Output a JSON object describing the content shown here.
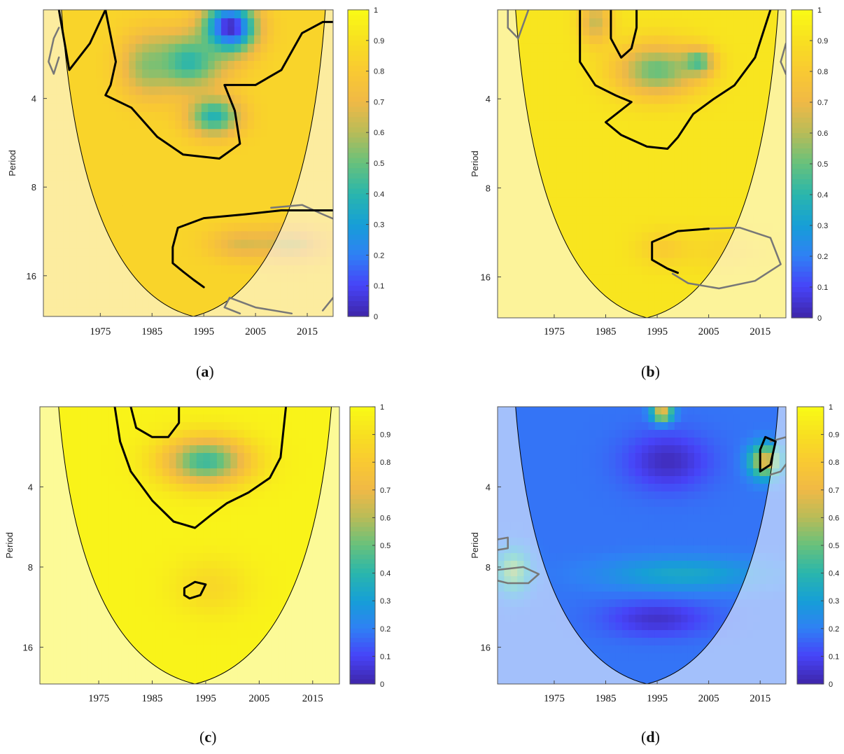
{
  "figure": {
    "colormap": [
      "#3e26a8",
      "#4743f8",
      "#2f80f5",
      "#169fd6",
      "#2ab6ac",
      "#67c17c",
      "#b8bc58",
      "#f0b946",
      "#f9c932",
      "#f8e021",
      "#f9fb15"
    ],
    "coi_color": "#000000",
    "sig_contour_color": "#000000",
    "outside_contour_color": "#777777"
  },
  "chart_data": [
    {
      "panel_label": "a",
      "type": "heatmap",
      "title": "",
      "xlabel": "",
      "ylabel": "Period",
      "x_ticks": [
        1975,
        1985,
        1995,
        2005,
        2015
      ],
      "y_ticks": [
        4,
        8,
        16
      ],
      "xlim": [
        1964,
        2020
      ],
      "ylim": [
        2,
        22
      ],
      "colorbar": {
        "ticks": [
          0,
          0.1,
          0.2,
          0.3,
          0.4,
          0.5,
          0.6,
          0.7,
          0.8,
          0.9,
          1
        ],
        "labels": [
          "0",
          "0.1",
          "0.2",
          "0.3",
          "0.4",
          "0.5",
          "0.6",
          "0.7",
          "0.8",
          "0.9",
          "1"
        ]
      },
      "coi": {
        "apex_x": 1993,
        "left_top_x": 1967.5,
        "right_top_x": 2018.5
      },
      "background_value": 0.85,
      "blobs": [
        {
          "x": 2000,
          "y": 2.3,
          "sx": 5,
          "sy": 0.28,
          "v": 0.0,
          "w": 1.0
        },
        {
          "x": 1992,
          "y": 3.0,
          "sx": 7,
          "sy": 0.32,
          "v": 0.35,
          "w": 0.9
        },
        {
          "x": 1984,
          "y": 3.1,
          "sx": 5,
          "sy": 0.35,
          "v": 0.45,
          "w": 0.7
        },
        {
          "x": 1997,
          "y": 4.6,
          "sx": 5,
          "sy": 0.22,
          "v": 0.3,
          "w": 0.85
        },
        {
          "x": 2002,
          "y": 12.5,
          "sx": 6,
          "sy": 0.18,
          "v": 0.6,
          "w": 0.7
        },
        {
          "x": 2012,
          "y": 12.5,
          "sx": 7,
          "sy": 0.2,
          "v": 0.5,
          "w": 0.6
        }
      ],
      "sig_contours": [
        [
          [
            1967,
            2.0
          ],
          [
            1969,
            3.2
          ],
          [
            1973,
            2.6
          ],
          [
            1976,
            2.0
          ],
          [
            1978,
            3.0
          ],
          [
            1977,
            3.6
          ],
          [
            1976,
            3.9
          ],
          [
            1981,
            4.3
          ],
          [
            1986,
            5.4
          ],
          [
            1991,
            6.2
          ],
          [
            1998,
            6.4
          ],
          [
            2002,
            5.7
          ],
          [
            2001,
            4.4
          ],
          [
            1999,
            3.6
          ],
          [
            2005,
            3.6
          ],
          [
            2010,
            3.2
          ],
          [
            2014,
            2.4
          ],
          [
            2018,
            2.2
          ],
          [
            2022,
            2.2
          ]
        ],
        [
          [
            2022,
            9.6
          ],
          [
            2010,
            9.6
          ],
          [
            2003,
            9.9
          ],
          [
            1995,
            10.2
          ],
          [
            1990,
            11.0
          ],
          [
            1989,
            12.8
          ],
          [
            1989,
            14.5
          ],
          [
            1991,
            15.5
          ],
          [
            1993,
            16.5
          ],
          [
            1995,
            17.5
          ]
        ]
      ],
      "outside_contours": [
        [
          [
            1967,
            2.9
          ],
          [
            1966,
            3.3
          ],
          [
            1965,
            3.0
          ],
          [
            1966,
            2.5
          ],
          [
            1967,
            2.3
          ]
        ],
        [
          [
            2008,
            9.4
          ],
          [
            2014,
            9.2
          ],
          [
            2018,
            9.9
          ],
          [
            2022,
            10.6
          ]
        ],
        [
          [
            2002,
            21.5
          ],
          [
            1999,
            20.5
          ],
          [
            2000,
            19.0
          ],
          [
            2005,
            20.5
          ],
          [
            2012,
            21.5
          ]
        ],
        [
          [
            2018,
            21.0
          ],
          [
            2020,
            19.0
          ],
          [
            2022,
            18.5
          ]
        ]
      ]
    },
    {
      "panel_label": "b",
      "type": "heatmap",
      "title": "",
      "xlabel": "",
      "ylabel": "Period",
      "x_ticks": [
        1975,
        1985,
        1995,
        2005,
        2015
      ],
      "y_ticks": [
        4,
        8,
        16
      ],
      "xlim": [
        1964,
        2020
      ],
      "ylim": [
        2,
        22
      ],
      "colorbar": {
        "ticks": [
          0,
          0.1,
          0.2,
          0.3,
          0.4,
          0.5,
          0.6,
          0.7,
          0.8,
          0.9,
          1
        ],
        "labels": [
          "0",
          "0.1",
          "0.2",
          "0.3",
          "0.4",
          "0.5",
          "0.6",
          "0.7",
          "0.8",
          "0.9",
          "1"
        ]
      },
      "coi": {
        "apex_x": 1993,
        "left_top_x": 1967.5,
        "right_top_x": 2018.5
      },
      "background_value": 0.92,
      "blobs": [
        {
          "x": 1995,
          "y": 3.2,
          "sx": 8,
          "sy": 0.3,
          "v": 0.45,
          "w": 0.9
        },
        {
          "x": 2003,
          "y": 3.0,
          "sx": 3,
          "sy": 0.15,
          "v": 0.3,
          "w": 0.7
        },
        {
          "x": 1983,
          "y": 2.2,
          "sx": 3,
          "sy": 0.25,
          "v": 0.5,
          "w": 0.7
        },
        {
          "x": 1996,
          "y": 12.8,
          "sx": 5,
          "sy": 0.2,
          "v": 0.7,
          "w": 0.5
        },
        {
          "x": 2008,
          "y": 13.0,
          "sx": 8,
          "sy": 0.25,
          "v": 0.75,
          "w": 0.4
        }
      ],
      "sig_contours": [
        [
          [
            1980,
            2.0
          ],
          [
            1980,
            3.0
          ],
          [
            1983,
            3.6
          ],
          [
            1987,
            3.9
          ],
          [
            1990,
            4.1
          ],
          [
            1985,
            4.8
          ],
          [
            1988,
            5.3
          ],
          [
            1993,
            5.8
          ],
          [
            1997,
            5.9
          ],
          [
            1999,
            5.4
          ],
          [
            2002,
            4.5
          ],
          [
            2006,
            4.0
          ],
          [
            2010,
            3.6
          ],
          [
            2014,
            2.9
          ],
          [
            2017,
            2.0
          ]
        ],
        [
          [
            1986,
            2.0
          ],
          [
            1986,
            2.5
          ],
          [
            1988,
            2.9
          ],
          [
            1990,
            2.7
          ],
          [
            1991,
            2.3
          ],
          [
            1991,
            2.0
          ]
        ],
        [
          [
            2005,
            11.0
          ],
          [
            1999,
            11.2
          ],
          [
            1994,
            12.2
          ],
          [
            1994,
            14.0
          ],
          [
            1997,
            15.0
          ],
          [
            1999,
            15.5
          ]
        ]
      ],
      "outside_contours": [
        [
          [
            1966,
            2.0
          ],
          [
            1966,
            2.3
          ],
          [
            1968,
            2.5
          ],
          [
            1970,
            2.0
          ]
        ],
        [
          [
            2022,
            2.5
          ],
          [
            2020,
            2.6
          ],
          [
            2019,
            3.0
          ],
          [
            2020,
            3.3
          ],
          [
            2022,
            3.3
          ]
        ],
        [
          [
            2004,
            11.0
          ],
          [
            2011,
            10.9
          ],
          [
            2017,
            11.8
          ],
          [
            2019,
            14.5
          ],
          [
            2014,
            16.5
          ],
          [
            2007,
            17.5
          ],
          [
            2001,
            16.8
          ],
          [
            1998,
            15.6
          ]
        ]
      ]
    },
    {
      "panel_label": "c",
      "type": "heatmap",
      "title": "",
      "xlabel": "",
      "ylabel": "Period",
      "x_ticks": [
        1975,
        1985,
        1995,
        2005,
        2015
      ],
      "y_ticks": [
        4,
        8,
        16
      ],
      "xlim": [
        1964,
        2020
      ],
      "ylim": [
        2,
        22
      ],
      "colorbar": {
        "ticks": [
          0,
          0.1,
          0.2,
          0.3,
          0.4,
          0.5,
          0.6,
          0.7,
          0.8,
          0.9,
          1
        ],
        "labels": [
          "0",
          "0.1",
          "0.2",
          "0.3",
          "0.4",
          "0.5",
          "0.6",
          "0.7",
          "0.8",
          "0.9",
          "1"
        ]
      },
      "coi": {
        "apex_x": 1993,
        "left_top_x": 1967.5,
        "right_top_x": 2018.5
      },
      "background_value": 0.97,
      "blobs": [
        {
          "x": 1995,
          "y": 3.2,
          "sx": 8,
          "sy": 0.3,
          "v": 0.4,
          "w": 0.95
        },
        {
          "x": 1996,
          "y": 9.5,
          "sx": 7,
          "sy": 0.35,
          "v": 0.82,
          "w": 0.7
        }
      ],
      "sig_contours": [
        [
          [
            1978,
            2.0
          ],
          [
            1979,
            2.7
          ],
          [
            1981,
            3.5
          ],
          [
            1985,
            4.5
          ],
          [
            1989,
            5.4
          ],
          [
            1993,
            5.7
          ],
          [
            1996,
            5.1
          ],
          [
            1999,
            4.6
          ],
          [
            2003,
            4.2
          ],
          [
            2007,
            3.7
          ],
          [
            2009,
            3.1
          ],
          [
            2010,
            2.0
          ]
        ],
        [
          [
            1981,
            2.0
          ],
          [
            1982,
            2.4
          ],
          [
            1985,
            2.6
          ],
          [
            1988,
            2.6
          ],
          [
            1990,
            2.3
          ],
          [
            1990,
            2.0
          ]
        ],
        [
          [
            1991,
            10.2
          ],
          [
            1991,
            9.6
          ],
          [
            1993,
            9.1
          ],
          [
            1995,
            9.3
          ],
          [
            1994,
            10.2
          ],
          [
            1992,
            10.5
          ],
          [
            1991,
            10.2
          ]
        ]
      ],
      "outside_contours": []
    },
    {
      "panel_label": "d",
      "type": "heatmap",
      "title": "",
      "xlabel": "",
      "ylabel": "Period",
      "x_ticks": [
        1975,
        1985,
        1995,
        2005,
        2015
      ],
      "y_ticks": [
        4,
        8,
        16
      ],
      "xlim": [
        1964,
        2020
      ],
      "ylim": [
        2,
        22
      ],
      "colorbar": {
        "ticks": [
          0,
          0.1,
          0.2,
          0.3,
          0.4,
          0.5,
          0.6,
          0.7,
          0.8,
          0.9,
          1
        ],
        "labels": [
          "0",
          "0.1",
          "0.2",
          "0.3",
          "0.4",
          "0.5",
          "0.6",
          "0.7",
          "0.8",
          "0.9",
          "1"
        ]
      },
      "coi": {
        "apex_x": 1993,
        "left_top_x": 1967.5,
        "right_top_x": 2018.5
      },
      "background_value": 0.18,
      "blobs": [
        {
          "x": 1997,
          "y": 3.2,
          "sx": 8,
          "sy": 0.35,
          "v": 0.02,
          "w": 0.95
        },
        {
          "x": 1995,
          "y": 12.5,
          "sx": 10,
          "sy": 0.22,
          "v": 0.03,
          "w": 0.9
        },
        {
          "x": 2016,
          "y": 3.2,
          "sx": 3,
          "sy": 0.2,
          "v": 0.75,
          "w": 0.9
        },
        {
          "x": 1996,
          "y": 2.1,
          "sx": 2,
          "sy": 0.12,
          "v": 0.85,
          "w": 0.8
        },
        {
          "x": 1967,
          "y": 8.3,
          "sx": 3,
          "sy": 0.25,
          "v": 0.7,
          "w": 0.7
        },
        {
          "x": 2000,
          "y": 8.5,
          "sx": 15,
          "sy": 0.2,
          "v": 0.4,
          "w": 0.7
        }
      ],
      "sig_contours": [
        [
          [
            2015,
            2.9
          ],
          [
            2016,
            2.6
          ],
          [
            2018,
            2.7
          ],
          [
            2017,
            3.3
          ],
          [
            2015,
            3.5
          ],
          [
            2015,
            2.9
          ]
        ]
      ],
      "outside_contours": [
        [
          [
            2017,
            2.7
          ],
          [
            2020,
            2.6
          ],
          [
            2021,
            3.1
          ],
          [
            2019,
            3.5
          ],
          [
            2017,
            3.6
          ]
        ],
        [
          [
            1964,
            6.3
          ],
          [
            1966,
            6.2
          ],
          [
            1966,
            6.8
          ],
          [
            1964,
            6.9
          ]
        ],
        [
          [
            1964,
            8.2
          ],
          [
            1969,
            8.0
          ],
          [
            1972,
            8.5
          ],
          [
            1970,
            9.2
          ],
          [
            1966,
            9.2
          ],
          [
            1964,
            9.0
          ]
        ]
      ]
    }
  ]
}
